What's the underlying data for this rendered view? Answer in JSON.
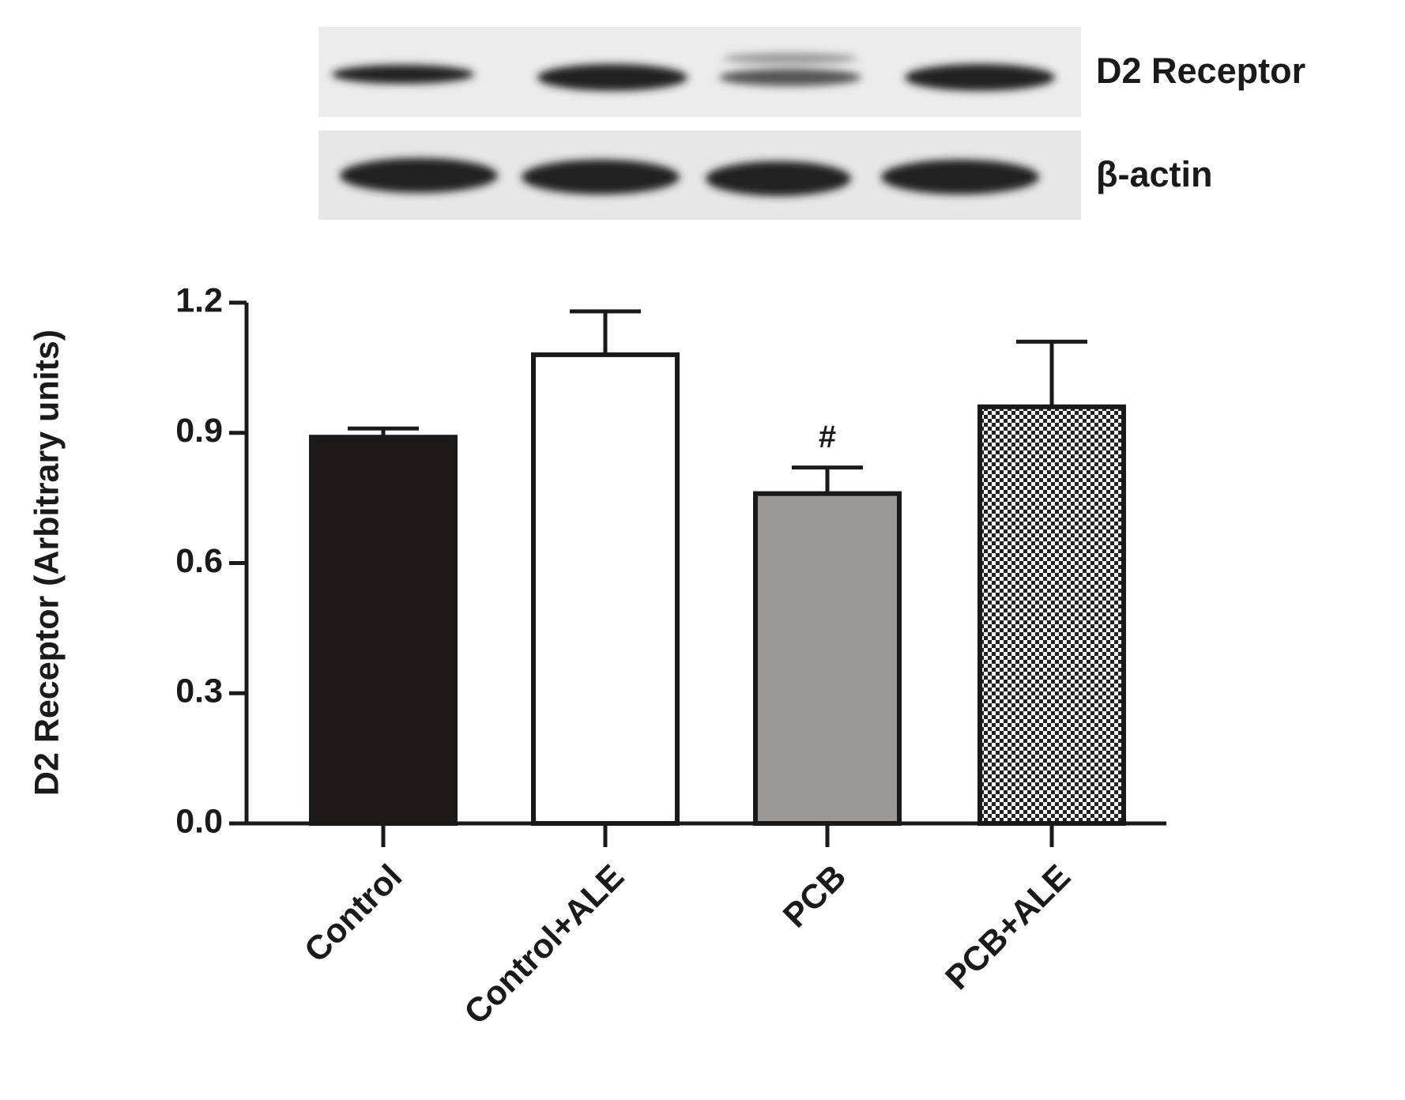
{
  "chart_data": {
    "type": "bar",
    "ylabel": "D2 Receptor (Arbitrary units)",
    "categories": [
      "Control",
      "Control+ALE",
      "PCB",
      "PCB+ALE"
    ],
    "values": [
      0.89,
      1.08,
      0.76,
      0.96
    ],
    "errors": [
      0.02,
      0.1,
      0.06,
      0.15
    ],
    "fills": [
      "#1c1818",
      "#ffffff",
      "#9b9995",
      "checkerboard"
    ],
    "annotations": [
      {
        "category": "PCB",
        "text": "#"
      }
    ],
    "ylim": [
      0,
      1.2
    ],
    "yticks": [
      {
        "value": 0,
        "label": "0.0"
      },
      0.3,
      0.6,
      0.9,
      1.2
    ],
    "blot_labels": [
      "D2 Receptor",
      "β-actin"
    ]
  }
}
